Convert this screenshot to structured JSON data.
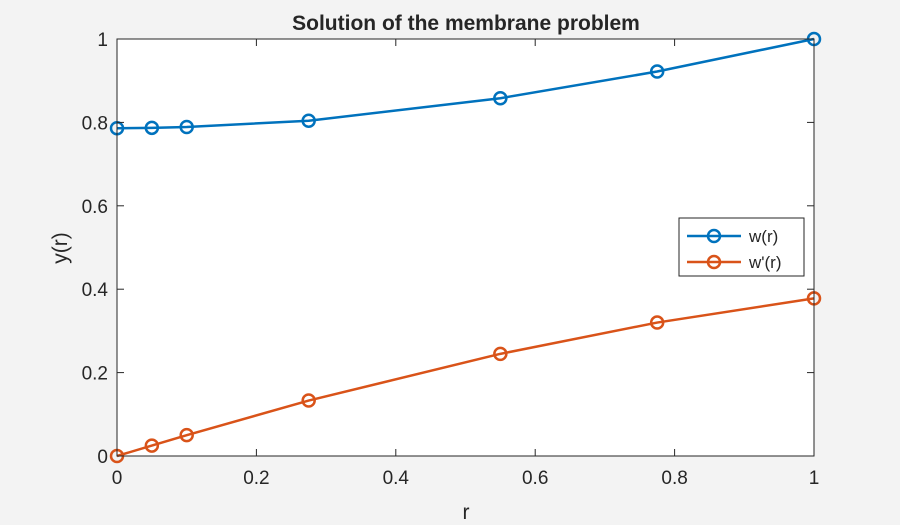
{
  "chart_data": {
    "type": "line",
    "title": "Solution of the membrane problem",
    "xlabel": "r",
    "ylabel": "y(r)",
    "xlim": [
      0,
      1
    ],
    "ylim": [
      0,
      1
    ],
    "xticks": [
      0,
      0.2,
      0.4,
      0.6,
      0.8,
      1
    ],
    "xtick_labels": [
      "0",
      "0.2",
      "0.4",
      "0.6",
      "0.8",
      "1"
    ],
    "yticks": [
      0,
      0.2,
      0.4,
      0.6,
      0.8,
      1
    ],
    "ytick_labels": [
      "0",
      "0.2",
      "0.4",
      "0.6",
      "0.8",
      "1"
    ],
    "grid": false,
    "legend_position": "right",
    "series": [
      {
        "name": "w(r)",
        "color": "#0072BD",
        "marker": "circle",
        "x": [
          0,
          0.05,
          0.1,
          0.275,
          0.55,
          0.775,
          1
        ],
        "y": [
          0.786,
          0.787,
          0.789,
          0.804,
          0.858,
          0.922,
          1.0
        ]
      },
      {
        "name": "w'(r)",
        "color": "#D95319",
        "marker": "circle",
        "x": [
          0,
          0.05,
          0.1,
          0.275,
          0.55,
          0.775,
          1
        ],
        "y": [
          0.0,
          0.025,
          0.05,
          0.133,
          0.245,
          0.32,
          0.378
        ]
      }
    ]
  }
}
